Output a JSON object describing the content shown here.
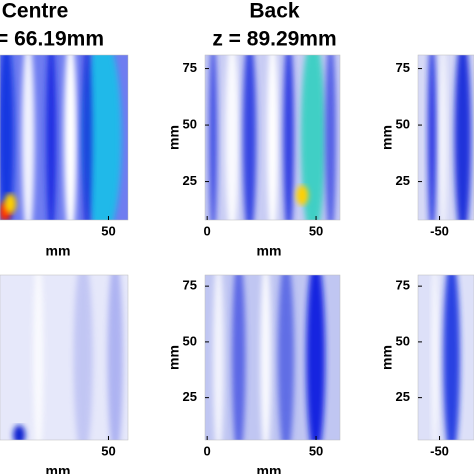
{
  "chart_data": [
    {
      "type": "heatmap",
      "title": "Centre",
      "subtitle": "= 66.19mm",
      "xlabel": "mm",
      "xlim": [
        0,
        59
      ],
      "xticks": [
        50
      ]
    },
    {
      "type": "heatmap",
      "title": "Back",
      "subtitle": "z = 89.29mm",
      "xlabel": "mm",
      "ylabel": "mm",
      "xlim": [
        -1,
        61
      ],
      "xticks": [
        0,
        50
      ],
      "ylim": [
        8,
        81
      ],
      "yticks": [
        25,
        50,
        75
      ]
    },
    {
      "type": "heatmap",
      "ylabel": "mm",
      "xlim": [
        -60,
        -34
      ],
      "xticks": [
        -50
      ],
      "ylim": [
        8,
        81
      ],
      "yticks": [
        25,
        50,
        75
      ]
    },
    {
      "type": "heatmap",
      "xlabel": "mm",
      "xlim": [
        0,
        59
      ],
      "xticks": [
        50
      ]
    },
    {
      "type": "heatmap",
      "xlabel": "mm",
      "ylabel": "mm",
      "xlim": [
        -1,
        61
      ],
      "xticks": [
        0,
        50
      ],
      "ylim": [
        6,
        80
      ],
      "yticks": [
        25,
        50,
        75
      ]
    },
    {
      "type": "heatmap",
      "ylabel": "mm",
      "xlim": [
        -60,
        -34
      ],
      "xticks": [
        -50
      ],
      "ylim": [
        6,
        80
      ],
      "yticks": [
        25,
        50,
        75
      ]
    }
  ]
}
